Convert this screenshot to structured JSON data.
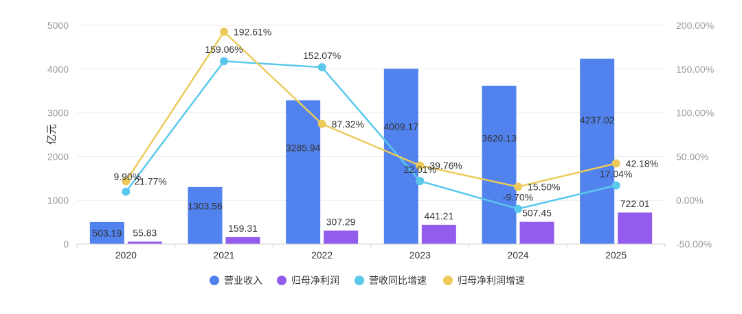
{
  "chart_data": {
    "type": "bar",
    "ylabel": "亿元",
    "categories": [
      "2020",
      "2021",
      "2022",
      "2023",
      "2024",
      "2025"
    ],
    "ylim": [
      0,
      5000
    ],
    "y_ticks": [
      "0",
      "1000",
      "2000",
      "3000",
      "4000",
      "5000"
    ],
    "y2lim": [
      -50,
      200
    ],
    "y2_ticks": [
      "-50.00%",
      "0.00%",
      "50.00%",
      "100.00%",
      "150.00%",
      "200.00%"
    ],
    "series": [
      {
        "name": "营业收入",
        "kind": "bar",
        "axis": "left",
        "color": "#5182ee",
        "values": [
          503.19,
          1303.56,
          3285.94,
          4009.17,
          3620.13,
          4237.02
        ],
        "labels": [
          "503.19",
          "1303.56",
          "3285.94",
          "4009.17",
          "3620.13",
          "4237.02"
        ]
      },
      {
        "name": "归母净利润",
        "kind": "bar",
        "axis": "left",
        "color": "#935cec",
        "values": [
          55.83,
          159.31,
          307.29,
          441.21,
          507.45,
          722.01
        ],
        "labels": [
          "55.83",
          "159.31",
          "307.29",
          "441.21",
          "507.45",
          "722.01"
        ]
      },
      {
        "name": "营收同比增速",
        "kind": "line",
        "axis": "right",
        "color": "#5ac8ec",
        "values": [
          9.9,
          159.06,
          152.07,
          22.01,
          -9.7,
          17.04
        ],
        "labels": [
          "9.90%",
          "159.06%",
          "152.07%",
          "22.01%",
          "-9.70%",
          "17.04%"
        ]
      },
      {
        "name": "归母净利润增速",
        "kind": "line",
        "axis": "right",
        "color": "#eccb5a",
        "values": [
          21.77,
          192.61,
          87.32,
          39.76,
          15.5,
          42.18
        ],
        "labels": [
          "21.77%",
          "192.61%",
          "87.32%",
          "39.76%",
          "15.50%",
          "42.18%"
        ]
      }
    ]
  }
}
